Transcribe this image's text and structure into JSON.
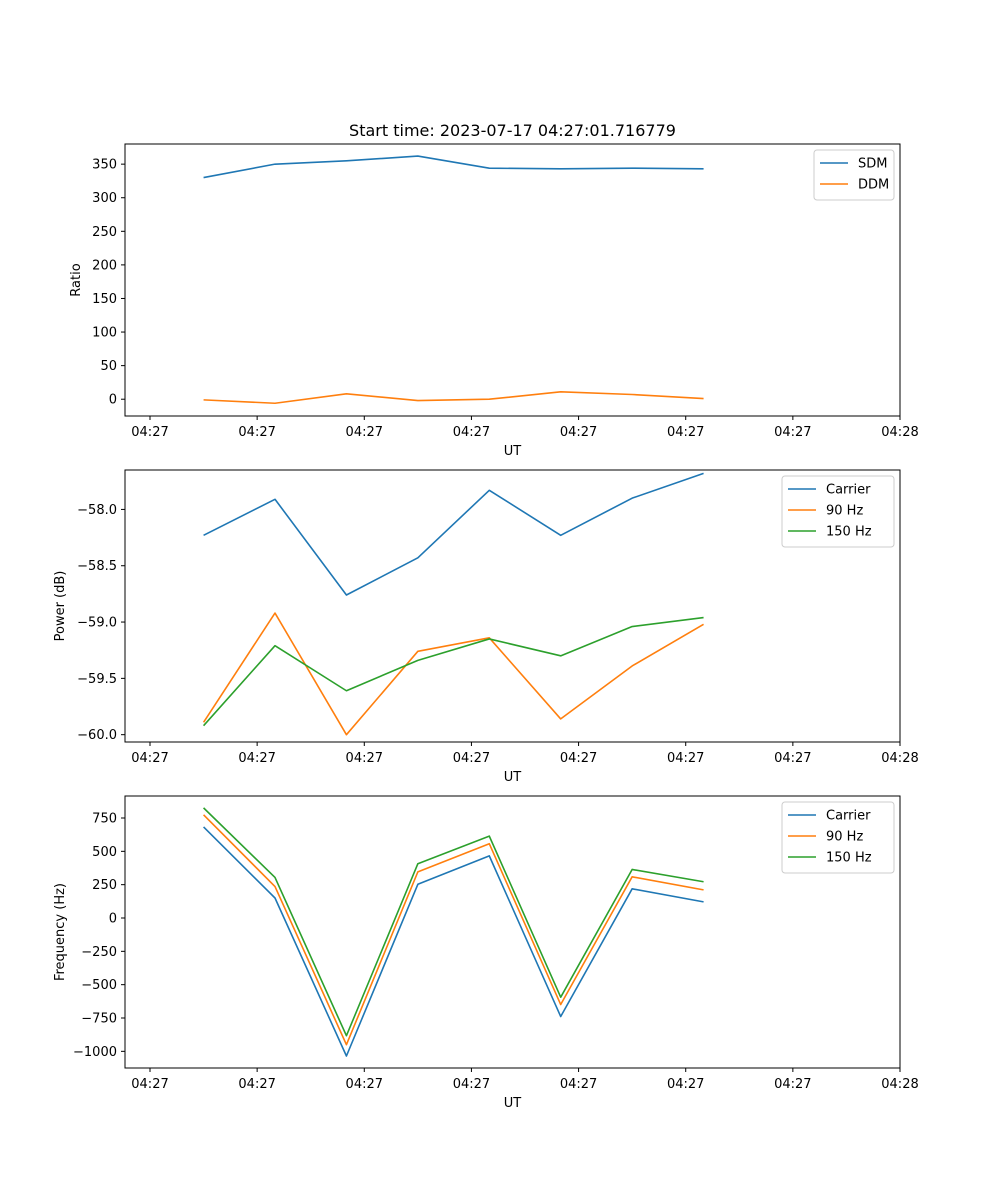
{
  "figure_title": "Start time: 2023-07-17 04:27:01.716779",
  "colors": {
    "blue": "#1f77b4",
    "orange": "#ff7f0e",
    "green": "#2ca02c"
  },
  "chart_data": [
    {
      "type": "line",
      "title": "Start time: 2023-07-17 04:27:01.716779",
      "xlabel": "UT",
      "ylabel": "Ratio",
      "x_tick_labels": [
        "04:27",
        "04:27",
        "04:27",
        "04:27",
        "04:27",
        "04:27",
        "04:27",
        "04:28"
      ],
      "x_tick_positions": [
        0.0,
        1.5,
        3.0,
        4.5,
        6.0,
        7.5,
        9.0,
        10.5
      ],
      "xlim": [
        -0.35,
        10.5
      ],
      "ylim": [
        -25,
        380
      ],
      "y_ticks": [
        0,
        50,
        100,
        150,
        200,
        250,
        300,
        350
      ],
      "x": [
        0.75,
        1.75,
        2.75,
        3.75,
        4.75,
        5.75,
        6.75,
        7.75
      ],
      "series": [
        {
          "name": "SDM",
          "color": "#1f77b4",
          "values": [
            330,
            350,
            355,
            362,
            344,
            343,
            344,
            343
          ]
        },
        {
          "name": "DDM",
          "color": "#ff7f0e",
          "values": [
            -1,
            -6,
            8,
            -2,
            0,
            11,
            7,
            1
          ]
        }
      ],
      "legend": "top-right"
    },
    {
      "type": "line",
      "title": "",
      "xlabel": "UT",
      "ylabel": "Power (dB)",
      "x_tick_labels": [
        "04:27",
        "04:27",
        "04:27",
        "04:27",
        "04:27",
        "04:27",
        "04:27",
        "04:28"
      ],
      "x_tick_positions": [
        0.0,
        1.5,
        3.0,
        4.5,
        6.0,
        7.5,
        9.0,
        10.5
      ],
      "xlim": [
        -0.35,
        10.5
      ],
      "ylim": [
        -60.065,
        -57.65
      ],
      "y_ticks": [
        -60.0,
        -59.5,
        -59.0,
        -58.5,
        -58.0
      ],
      "y_tick_labels": [
        "−60.0",
        "−59.5",
        "−59.0",
        "−58.5",
        "−58.0"
      ],
      "x": [
        0.75,
        1.75,
        2.75,
        3.75,
        4.75,
        5.75,
        6.75,
        7.75
      ],
      "series": [
        {
          "name": "Carrier",
          "color": "#1f77b4",
          "values": [
            -58.23,
            -57.91,
            -58.76,
            -58.43,
            -57.83,
            -58.23,
            -57.9,
            -57.68
          ]
        },
        {
          "name": "90 Hz",
          "color": "#ff7f0e",
          "values": [
            -59.89,
            -58.92,
            -60.0,
            -59.26,
            -59.14,
            -59.86,
            -59.39,
            -59.02
          ]
        },
        {
          "name": "150 Hz",
          "color": "#2ca02c",
          "values": [
            -59.92,
            -59.21,
            -59.61,
            -59.34,
            -59.15,
            -59.3,
            -59.04,
            -58.96
          ]
        }
      ],
      "legend": "top-right"
    },
    {
      "type": "line",
      "title": "",
      "xlabel": "UT",
      "ylabel": "Frequency (Hz)",
      "x_tick_labels": [
        "04:27",
        "04:27",
        "04:27",
        "04:27",
        "04:27",
        "04:27",
        "04:27",
        "04:28"
      ],
      "x_tick_positions": [
        0.0,
        1.5,
        3.0,
        4.5,
        6.0,
        7.5,
        9.0,
        10.5
      ],
      "xlim": [
        -0.35,
        10.5
      ],
      "ylim": [
        -1125,
        915
      ],
      "y_ticks": [
        -1000,
        -750,
        -500,
        -250,
        0,
        250,
        500,
        750
      ],
      "y_tick_labels": [
        "−1000",
        "−750",
        "−500",
        "−250",
        "0",
        "250",
        "500",
        "750"
      ],
      "x": [
        0.75,
        1.75,
        2.75,
        3.75,
        4.75,
        5.75,
        6.75,
        7.75
      ],
      "series": [
        {
          "name": "Carrier",
          "color": "#1f77b4",
          "values": [
            683,
            150,
            -1035,
            253,
            466,
            -739,
            219,
            121
          ]
        },
        {
          "name": "90 Hz",
          "color": "#ff7f0e",
          "values": [
            774,
            236,
            -950,
            346,
            557,
            -649,
            309,
            211
          ]
        },
        {
          "name": "150 Hz",
          "color": "#2ca02c",
          "values": [
            826,
            304,
            -883,
            407,
            614,
            -594,
            364,
            272
          ]
        }
      ],
      "legend": "top-right"
    }
  ]
}
